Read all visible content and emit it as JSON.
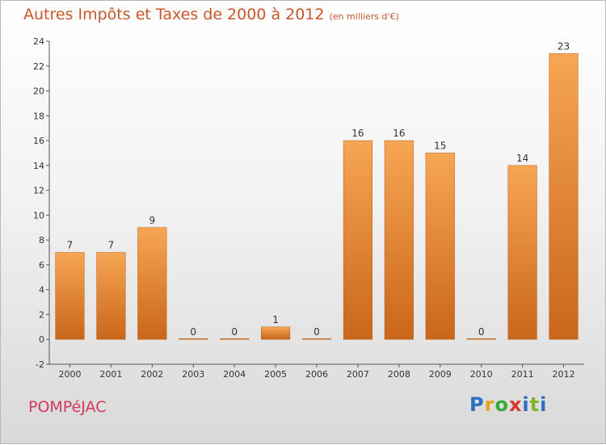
{
  "header": {
    "title": "Autres Impôts et Taxes de 2000 à 2012",
    "unit": "(en milliers d'€)"
  },
  "footer": {
    "commune": "POMPéJAC",
    "logo_letters": [
      "P",
      "r",
      "o",
      "x",
      "i",
      "t",
      "i"
    ]
  },
  "colors": {
    "bar_top": "#f7a653",
    "bar_bottom": "#c9661a",
    "axis": "#555555",
    "title": "#c8562d",
    "commune": "#d23a5a"
  },
  "chart_data": {
    "type": "bar",
    "title": "Autres Impôts et Taxes de 2000 à 2012",
    "xlabel": "",
    "ylabel": "",
    "categories": [
      "2000",
      "2001",
      "2002",
      "2003",
      "2004",
      "2005",
      "2006",
      "2007",
      "2008",
      "2009",
      "2010",
      "2011",
      "2012"
    ],
    "values": [
      7,
      7,
      9,
      0,
      0,
      1,
      0,
      16,
      16,
      15,
      0,
      14,
      23
    ],
    "ylim": [
      -2,
      24
    ],
    "yticks": [
      -2,
      0,
      2,
      4,
      6,
      8,
      10,
      12,
      14,
      16,
      18,
      20,
      22,
      24
    ],
    "grid": false
  }
}
